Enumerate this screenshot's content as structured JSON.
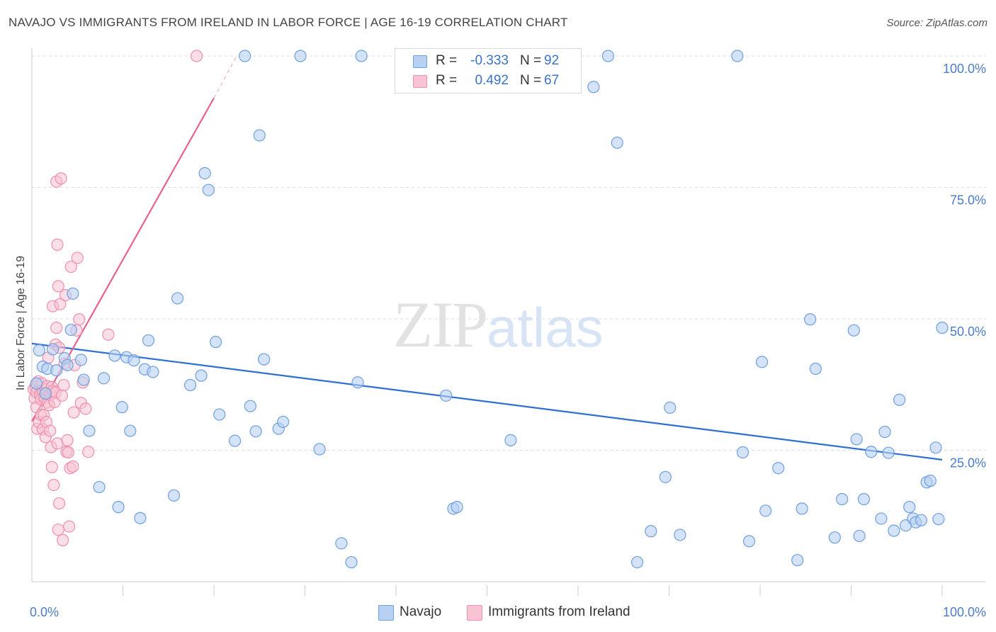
{
  "title": "NAVAJO VS IMMIGRANTS FROM IRELAND IN LABOR FORCE | AGE 16-19 CORRELATION CHART",
  "source": "Source: ZipAtlas.com",
  "watermark": {
    "zip": "ZIP",
    "atlas": "atlas"
  },
  "legend": {
    "navajo": {
      "r_label": "R =",
      "r_value": "-0.333",
      "n_label": "N =",
      "n_value": "92"
    },
    "ireland": {
      "r_label": "R =",
      "r_value": "0.492",
      "n_label": "N =",
      "n_value": "67"
    }
  },
  "bottom_legend": {
    "navajo": "Navajo",
    "ireland": "Immigrants from Ireland"
  },
  "colors": {
    "navajo_fill": "#b8d1f3",
    "navajo_stroke": "#6e9fdf",
    "navajo_line": "#2f6fcf",
    "ireland_fill": "#f8c3d3",
    "ireland_stroke": "#ef8fae",
    "ireland_line": "#e8628d",
    "grid": "#dddddd",
    "tick_text": "#4a7cc9"
  },
  "chart_data": {
    "type": "scatter",
    "title": "NAVAJO VS IMMIGRANTS FROM IRELAND IN LABOR FORCE | AGE 16-19 CORRELATION CHART",
    "xlabel": "",
    "ylabel": "In Labor Force | Age 16-19",
    "xlim": [
      0,
      100
    ],
    "ylim": [
      0,
      100
    ],
    "x_ticks": [
      {
        "value": 0,
        "label": "0.0%"
      },
      {
        "value": 100,
        "label": "100.0%"
      }
    ],
    "y_ticks": [
      {
        "value": 25,
        "label": "25.0%"
      },
      {
        "value": 50,
        "label": "50.0%"
      },
      {
        "value": 75,
        "label": "75.0%"
      },
      {
        "value": 100,
        "label": "100.0%"
      }
    ],
    "grid": true,
    "series": [
      {
        "name": "Navajo",
        "r": -0.333,
        "n": 92,
        "trend": {
          "x": [
            0,
            100
          ],
          "y": [
            45.3,
            23.2
          ]
        },
        "points": [
          [
            0.5,
            37.7
          ],
          [
            0.8,
            44.0
          ],
          [
            1.2,
            40.9
          ],
          [
            1.5,
            35.8
          ],
          [
            1.7,
            40.5
          ],
          [
            2.3,
            44.2
          ],
          [
            2.7,
            40.2
          ],
          [
            3.6,
            42.5
          ],
          [
            3.9,
            41.2
          ],
          [
            4.3,
            47.9
          ],
          [
            4.5,
            54.8
          ],
          [
            5.4,
            42.2
          ],
          [
            5.7,
            38.4
          ],
          [
            6.3,
            28.7
          ],
          [
            7.4,
            18.0
          ],
          [
            7.9,
            38.7
          ],
          [
            9.1,
            43.0
          ],
          [
            9.5,
            14.2
          ],
          [
            9.9,
            33.2
          ],
          [
            10.4,
            42.7
          ],
          [
            10.8,
            28.7
          ],
          [
            11.2,
            42.1
          ],
          [
            11.9,
            12.1
          ],
          [
            12.4,
            40.4
          ],
          [
            12.8,
            45.9
          ],
          [
            13.3,
            39.9
          ],
          [
            15.6,
            16.4
          ],
          [
            16.0,
            53.9
          ],
          [
            17.4,
            37.4
          ],
          [
            18.6,
            39.2
          ],
          [
            19.0,
            77.7
          ],
          [
            19.4,
            74.5
          ],
          [
            20.2,
            45.6
          ],
          [
            20.6,
            31.8
          ],
          [
            22.3,
            26.8
          ],
          [
            23.4,
            100.0
          ],
          [
            24.0,
            33.4
          ],
          [
            24.6,
            28.6
          ],
          [
            25.0,
            84.9
          ],
          [
            25.5,
            42.3
          ],
          [
            27.1,
            29.1
          ],
          [
            27.6,
            30.4
          ],
          [
            29.5,
            100.0
          ],
          [
            31.6,
            25.2
          ],
          [
            34.0,
            7.3
          ],
          [
            35.1,
            3.7
          ],
          [
            35.8,
            37.9
          ],
          [
            36.2,
            100.0
          ],
          [
            45.5,
            35.4
          ],
          [
            46.3,
            13.9
          ],
          [
            46.7,
            14.2
          ],
          [
            52.6,
            26.9
          ],
          [
            61.7,
            94.1
          ],
          [
            63.3,
            100.0
          ],
          [
            64.3,
            83.5
          ],
          [
            66.5,
            3.7
          ],
          [
            68.0,
            9.6
          ],
          [
            69.6,
            19.9
          ],
          [
            70.1,
            33.1
          ],
          [
            71.2,
            8.9
          ],
          [
            77.5,
            100.0
          ],
          [
            78.1,
            24.6
          ],
          [
            78.8,
            7.7
          ],
          [
            80.2,
            41.8
          ],
          [
            80.6,
            13.5
          ],
          [
            82.0,
            21.6
          ],
          [
            84.1,
            4.1
          ],
          [
            84.6,
            13.9
          ],
          [
            85.5,
            49.9
          ],
          [
            86.1,
            40.5
          ],
          [
            88.2,
            8.4
          ],
          [
            89.0,
            15.7
          ],
          [
            90.3,
            47.8
          ],
          [
            90.6,
            27.1
          ],
          [
            90.9,
            8.7
          ],
          [
            91.4,
            15.7
          ],
          [
            92.2,
            24.7
          ],
          [
            93.3,
            12.0
          ],
          [
            93.7,
            28.5
          ],
          [
            94.1,
            24.5
          ],
          [
            94.7,
            9.7
          ],
          [
            95.3,
            34.6
          ],
          [
            96.0,
            10.7
          ],
          [
            96.4,
            14.2
          ],
          [
            96.8,
            12.0
          ],
          [
            97.1,
            11.3
          ],
          [
            97.7,
            11.7
          ],
          [
            98.3,
            18.9
          ],
          [
            98.7,
            19.2
          ],
          [
            99.3,
            25.5
          ],
          [
            99.6,
            11.9
          ],
          [
            100.0,
            48.3
          ]
        ]
      },
      {
        "name": "Immigrants from Ireland",
        "r": 0.492,
        "n": 67,
        "trend": {
          "x": [
            0,
            20
          ],
          "y": [
            30.5,
            92.0
          ],
          "dashed_to": {
            "x": 22.5,
            "y": 100.0
          }
        },
        "points": [
          [
            0.2,
            36.6
          ],
          [
            0.3,
            34.9
          ],
          [
            0.4,
            37.2
          ],
          [
            0.5,
            33.2
          ],
          [
            0.5,
            36.0
          ],
          [
            0.6,
            29.1
          ],
          [
            0.7,
            38.1
          ],
          [
            0.8,
            30.3
          ],
          [
            0.9,
            35.6
          ],
          [
            1.0,
            31.7
          ],
          [
            1.0,
            34.7
          ],
          [
            1.1,
            37.7
          ],
          [
            1.2,
            36.4
          ],
          [
            1.2,
            29.0
          ],
          [
            1.3,
            31.7
          ],
          [
            1.4,
            35.0
          ],
          [
            1.5,
            36.6
          ],
          [
            1.5,
            27.5
          ],
          [
            1.6,
            30.4
          ],
          [
            1.7,
            34.1
          ],
          [
            1.7,
            37.2
          ],
          [
            1.8,
            42.6
          ],
          [
            1.9,
            33.6
          ],
          [
            2.0,
            35.5
          ],
          [
            2.0,
            28.7
          ],
          [
            2.1,
            25.6
          ],
          [
            2.2,
            21.8
          ],
          [
            2.2,
            37.0
          ],
          [
            2.3,
            52.4
          ],
          [
            2.3,
            36.3
          ],
          [
            2.4,
            18.4
          ],
          [
            2.5,
            34.2
          ],
          [
            2.6,
            45.1
          ],
          [
            2.6,
            36.0
          ],
          [
            2.7,
            48.3
          ],
          [
            2.7,
            76.1
          ],
          [
            2.8,
            64.1
          ],
          [
            2.8,
            26.3
          ],
          [
            2.9,
            9.9
          ],
          [
            2.9,
            56.2
          ],
          [
            3.0,
            14.9
          ],
          [
            3.0,
            44.5
          ],
          [
            3.1,
            52.8
          ],
          [
            3.2,
            76.7
          ],
          [
            3.3,
            35.4
          ],
          [
            3.4,
            7.9
          ],
          [
            3.5,
            37.4
          ],
          [
            3.6,
            41.5
          ],
          [
            3.7,
            54.5
          ],
          [
            3.8,
            24.7
          ],
          [
            3.9,
            26.9
          ],
          [
            4.0,
            24.6
          ],
          [
            4.1,
            10.5
          ],
          [
            4.2,
            21.6
          ],
          [
            4.3,
            59.9
          ],
          [
            4.5,
            21.9
          ],
          [
            4.6,
            32.2
          ],
          [
            4.7,
            41.2
          ],
          [
            4.9,
            47.8
          ],
          [
            5.0,
            61.6
          ],
          [
            5.2,
            49.9
          ],
          [
            5.4,
            34.0
          ],
          [
            5.6,
            37.9
          ],
          [
            5.9,
            32.9
          ],
          [
            6.2,
            24.7
          ],
          [
            8.4,
            47.0
          ],
          [
            18.1,
            100.0
          ]
        ]
      }
    ]
  }
}
